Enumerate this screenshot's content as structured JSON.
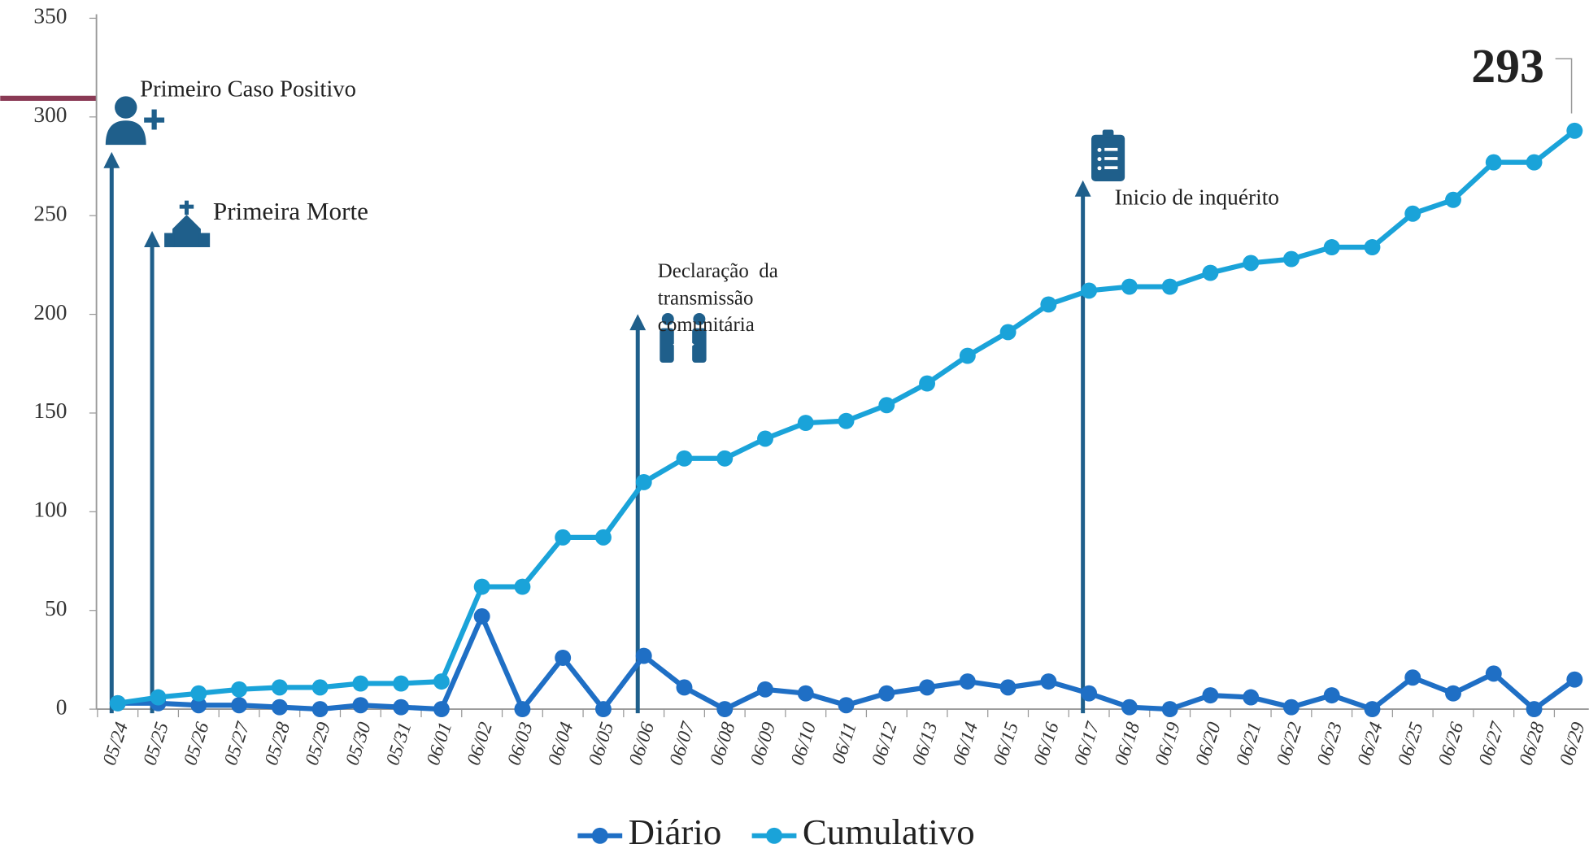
{
  "chart_data": {
    "type": "line",
    "categories": [
      "05/24",
      "05/25",
      "05/26",
      "05/27",
      "05/28",
      "05/29",
      "05/30",
      "05/31",
      "06/01",
      "06/02",
      "06/03",
      "06/04",
      "06/05",
      "06/06",
      "06/07",
      "06/08",
      "06/09",
      "06/10",
      "06/11",
      "06/12",
      "06/13",
      "06/14",
      "06/15",
      "06/16",
      "06/17",
      "06/18",
      "06/19",
      "06/20",
      "06/21",
      "06/22",
      "06/23",
      "06/24",
      "06/25",
      "06/26",
      "06/27",
      "06/28",
      "06/29"
    ],
    "series": [
      {
        "name": "Diário",
        "color": "#1f6fc5",
        "values": [
          3,
          3,
          2,
          2,
          1,
          0,
          2,
          1,
          0,
          47,
          0,
          26,
          0,
          27,
          11,
          0,
          10,
          8,
          2,
          8,
          11,
          14,
          11,
          14,
          8,
          1,
          0,
          7,
          6,
          1,
          7,
          0,
          16,
          8,
          18,
          0,
          15
        ]
      },
      {
        "name": "Cumulativo",
        "color": "#1aa3d9",
        "values": [
          3,
          6,
          8,
          10,
          11,
          11,
          13,
          13,
          14,
          62,
          62,
          87,
          87,
          115,
          127,
          127,
          137,
          145,
          146,
          154,
          165,
          179,
          191,
          205,
          212,
          214,
          214,
          221,
          226,
          228,
          234,
          234,
          251,
          258,
          277,
          277,
          293
        ]
      }
    ],
    "ylim": [
      0,
      350
    ],
    "yticks": [
      0,
      50,
      100,
      150,
      200,
      250,
      300,
      350
    ],
    "annotations": [
      "Primeiro Caso Positivo",
      "Primeira Morte",
      "Inicio de inquérito",
      "293"
    ],
    "community_note": [
      "Declaração  da",
      "transmissão",
      "comunitária"
    ],
    "legend": "bottom"
  }
}
